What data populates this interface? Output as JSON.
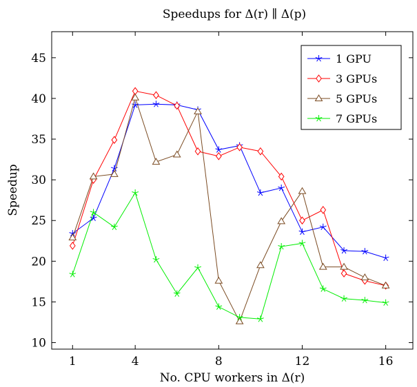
{
  "chart_data": {
    "type": "line",
    "title": "Speedups for Δ(r) ∥ Δ(p)",
    "xlabel": "No. CPU workers in Δ(r)",
    "ylabel": "Speedup",
    "xlim": [
      0,
      17.3
    ],
    "ylim": [
      9.2,
      48.2
    ],
    "xticks": [
      1,
      4,
      8,
      12,
      16
    ],
    "yticks": [
      10,
      15,
      20,
      25,
      30,
      35,
      40,
      45
    ],
    "grid": false,
    "legend_position": "top-right",
    "x": [
      1,
      2,
      3,
      4,
      5,
      6,
      7,
      8,
      9,
      10,
      11,
      12,
      13,
      14,
      15,
      16
    ],
    "series": [
      {
        "name": "1 GPU",
        "color": "#0000ff",
        "marker": "star",
        "values": [
          23.4,
          25.3,
          31.4,
          39.2,
          39.3,
          39.2,
          38.6,
          33.7,
          34.2,
          28.4,
          29.0,
          23.6,
          24.2,
          21.3,
          21.2,
          20.4
        ]
      },
      {
        "name": "3 GPUs",
        "color": "#ff0000",
        "marker": "diamond",
        "values": [
          21.9,
          30.0,
          34.9,
          40.9,
          40.4,
          39.1,
          33.5,
          32.9,
          34.0,
          33.5,
          30.4,
          25.0,
          26.3,
          18.5,
          17.6,
          17.0
        ]
      },
      {
        "name": "5 GPUs",
        "color": "#7a4a21",
        "marker": "triangle",
        "values": [
          22.9,
          30.4,
          30.7,
          40.1,
          32.2,
          33.1,
          38.4,
          17.6,
          12.6,
          19.5,
          24.9,
          28.6,
          19.3,
          19.3,
          18.0,
          17.0
        ]
      },
      {
        "name": "7 GPUs",
        "color": "#00ee00",
        "marker": "asterisk",
        "values": [
          18.4,
          26.0,
          24.2,
          28.4,
          20.2,
          16.0,
          19.2,
          14.4,
          13.1,
          12.9,
          21.8,
          22.2,
          16.6,
          15.4,
          15.2,
          14.9
        ]
      }
    ]
  }
}
